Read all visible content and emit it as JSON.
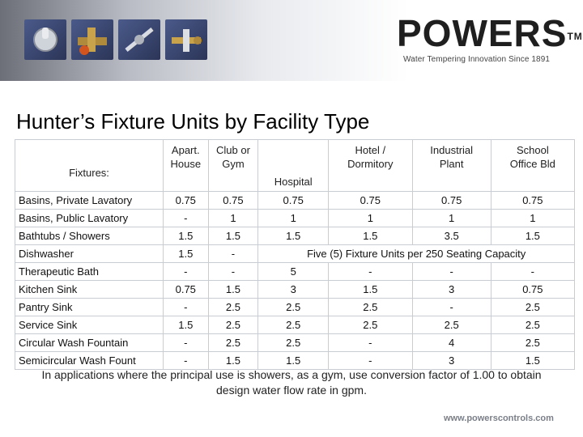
{
  "header": {
    "logo_text": "POWERS",
    "logo_tm": "TM",
    "tagline": "Water Tempering Innovation Since 1891",
    "product_photos": [
      "mixing-valve-photo",
      "tempering-valve-photo",
      "shower-valve-photo",
      "thermostatic-valve-photo"
    ]
  },
  "title": "Hunter’s Fixture Units by Facility Type",
  "table": {
    "first_header": "Fixtures:",
    "columns": [
      {
        "line1": "Apart.",
        "line2": "House"
      },
      {
        "line1": "Club or",
        "line2": "Gym"
      },
      {
        "line1": "Hospital",
        "line2": ""
      },
      {
        "line1": "Hotel /",
        "line2": "Dormitory"
      },
      {
        "line1": "Industrial",
        "line2": "Plant"
      },
      {
        "line1": "School",
        "line2": "Office Bld"
      }
    ],
    "rows": [
      {
        "name": "Basins, Private Lavatory",
        "values": [
          "0.75",
          "0.75",
          "0.75",
          "0.75",
          "0.75",
          "0.75"
        ]
      },
      {
        "name": "Basins, Public Lavatory",
        "values": [
          "-",
          "1",
          "1",
          "1",
          "1",
          "1"
        ]
      },
      {
        "name": "Bathtubs / Showers",
        "values": [
          "1.5",
          "1.5",
          "1.5",
          "1.5",
          "3.5",
          "1.5"
        ]
      },
      {
        "name": "Dishwasher",
        "values": [
          "1.5",
          "-"
        ],
        "span_text": "Five (5) Fixture Units per 250 Seating Capacity"
      },
      {
        "name": "Therapeutic Bath",
        "values": [
          "-",
          "-",
          "5",
          "-",
          "-",
          "-"
        ]
      },
      {
        "name": "Kitchen Sink",
        "values": [
          "0.75",
          "1.5",
          "3",
          "1.5",
          "3",
          "0.75"
        ]
      },
      {
        "name": "Pantry Sink",
        "values": [
          "-",
          "2.5",
          "2.5",
          "2.5",
          "-",
          "2.5"
        ]
      },
      {
        "name": "Service Sink",
        "values": [
          "1.5",
          "2.5",
          "2.5",
          "2.5",
          "2.5",
          "2.5"
        ]
      },
      {
        "name": "Circular Wash Fountain",
        "values": [
          "-",
          "2.5",
          "2.5",
          "-",
          "4",
          "2.5"
        ]
      },
      {
        "name": "Semicircular Wash Fount",
        "values": [
          "-",
          "1.5",
          "1.5",
          "-",
          "3",
          "1.5"
        ]
      }
    ]
  },
  "note": "In applications where the principal use is showers, as a gym, use conversion factor of 1.00 to obtain design water flow rate in gpm.",
  "footer_url": "www.powerscontrols.com"
}
